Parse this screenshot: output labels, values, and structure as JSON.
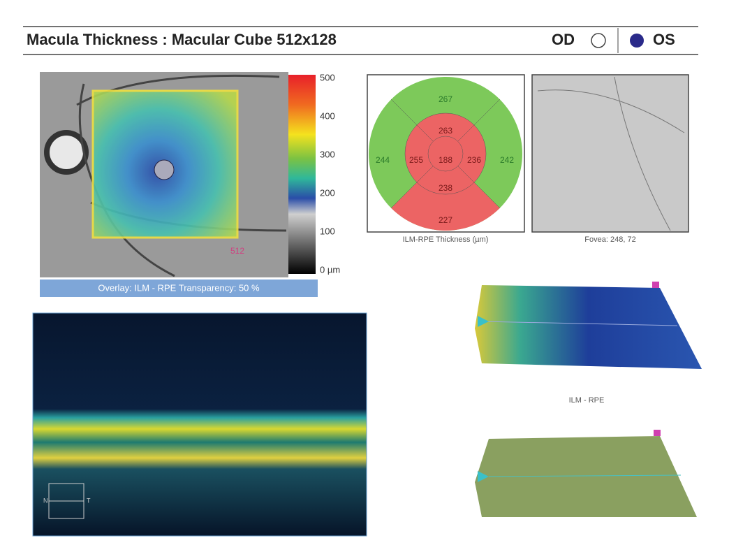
{
  "header": {
    "title": "Macula Thickness : Macular Cube 512x128",
    "od": "OD",
    "os": "OS"
  },
  "thickness_map": {
    "scale_labels": [
      "500",
      "400",
      "300",
      "200",
      "100",
      "0 µm"
    ],
    "corner_label": "512",
    "overlay": "Overlay: ILM - RPE  Transparency: 50 %"
  },
  "etdrs": {
    "outer_top": 267,
    "inner_top": 263,
    "outer_left": 244,
    "inner_left": 255,
    "center": 188,
    "inner_right": 236,
    "outer_right": 242,
    "inner_bottom": 238,
    "outer_bottom": 227,
    "caption": "ILM-RPE Thickness (µm)"
  },
  "fovea": {
    "caption": "Fovea: 248, 72"
  },
  "bscan": {
    "left": "N",
    "right": "T"
  },
  "surface": {
    "caption": "ILM - RPE"
  }
}
